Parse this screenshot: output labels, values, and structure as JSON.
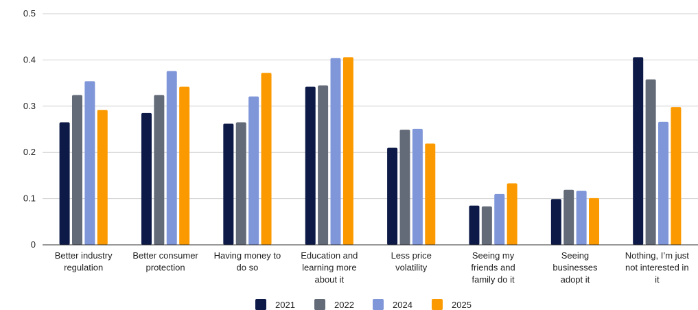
{
  "chart_data": {
    "type": "bar",
    "title": "",
    "xlabel": "",
    "ylabel": "",
    "ylim": [
      0,
      0.5
    ],
    "yticks": [
      "0",
      "0.1",
      "0.2",
      "0.3",
      "0.4",
      "0.5"
    ],
    "grid": true,
    "legend_position": "bottom",
    "categories": [
      [
        "Better industry",
        "regulation"
      ],
      [
        "Better consumer",
        "protection"
      ],
      [
        "Having money to",
        "do so"
      ],
      [
        "Education and",
        "learning more",
        "about it"
      ],
      [
        "Less price",
        "volatility"
      ],
      [
        "Seeing my",
        "friends and",
        "family do it"
      ],
      [
        "Seeing",
        "businesses",
        "adopt it"
      ],
      [
        "Nothing, I’m just",
        "not interested in",
        "it"
      ]
    ],
    "series": [
      {
        "name": "2021",
        "color": "#0d1a47",
        "values": [
          0.265,
          0.285,
          0.262,
          0.342,
          0.21,
          0.085,
          0.099,
          0.406
        ]
      },
      {
        "name": "2022",
        "color": "#646b78",
        "values": [
          0.324,
          0.324,
          0.265,
          0.345,
          0.249,
          0.083,
          0.119,
          0.358
        ]
      },
      {
        "name": "2024",
        "color": "#7f96d9",
        "values": [
          0.354,
          0.376,
          0.321,
          0.404,
          0.251,
          0.11,
          0.117,
          0.266
        ]
      },
      {
        "name": "2025",
        "color": "#fb9a00",
        "values": [
          0.292,
          0.342,
          0.372,
          0.406,
          0.219,
          0.133,
          0.101,
          0.298
        ]
      }
    ]
  }
}
